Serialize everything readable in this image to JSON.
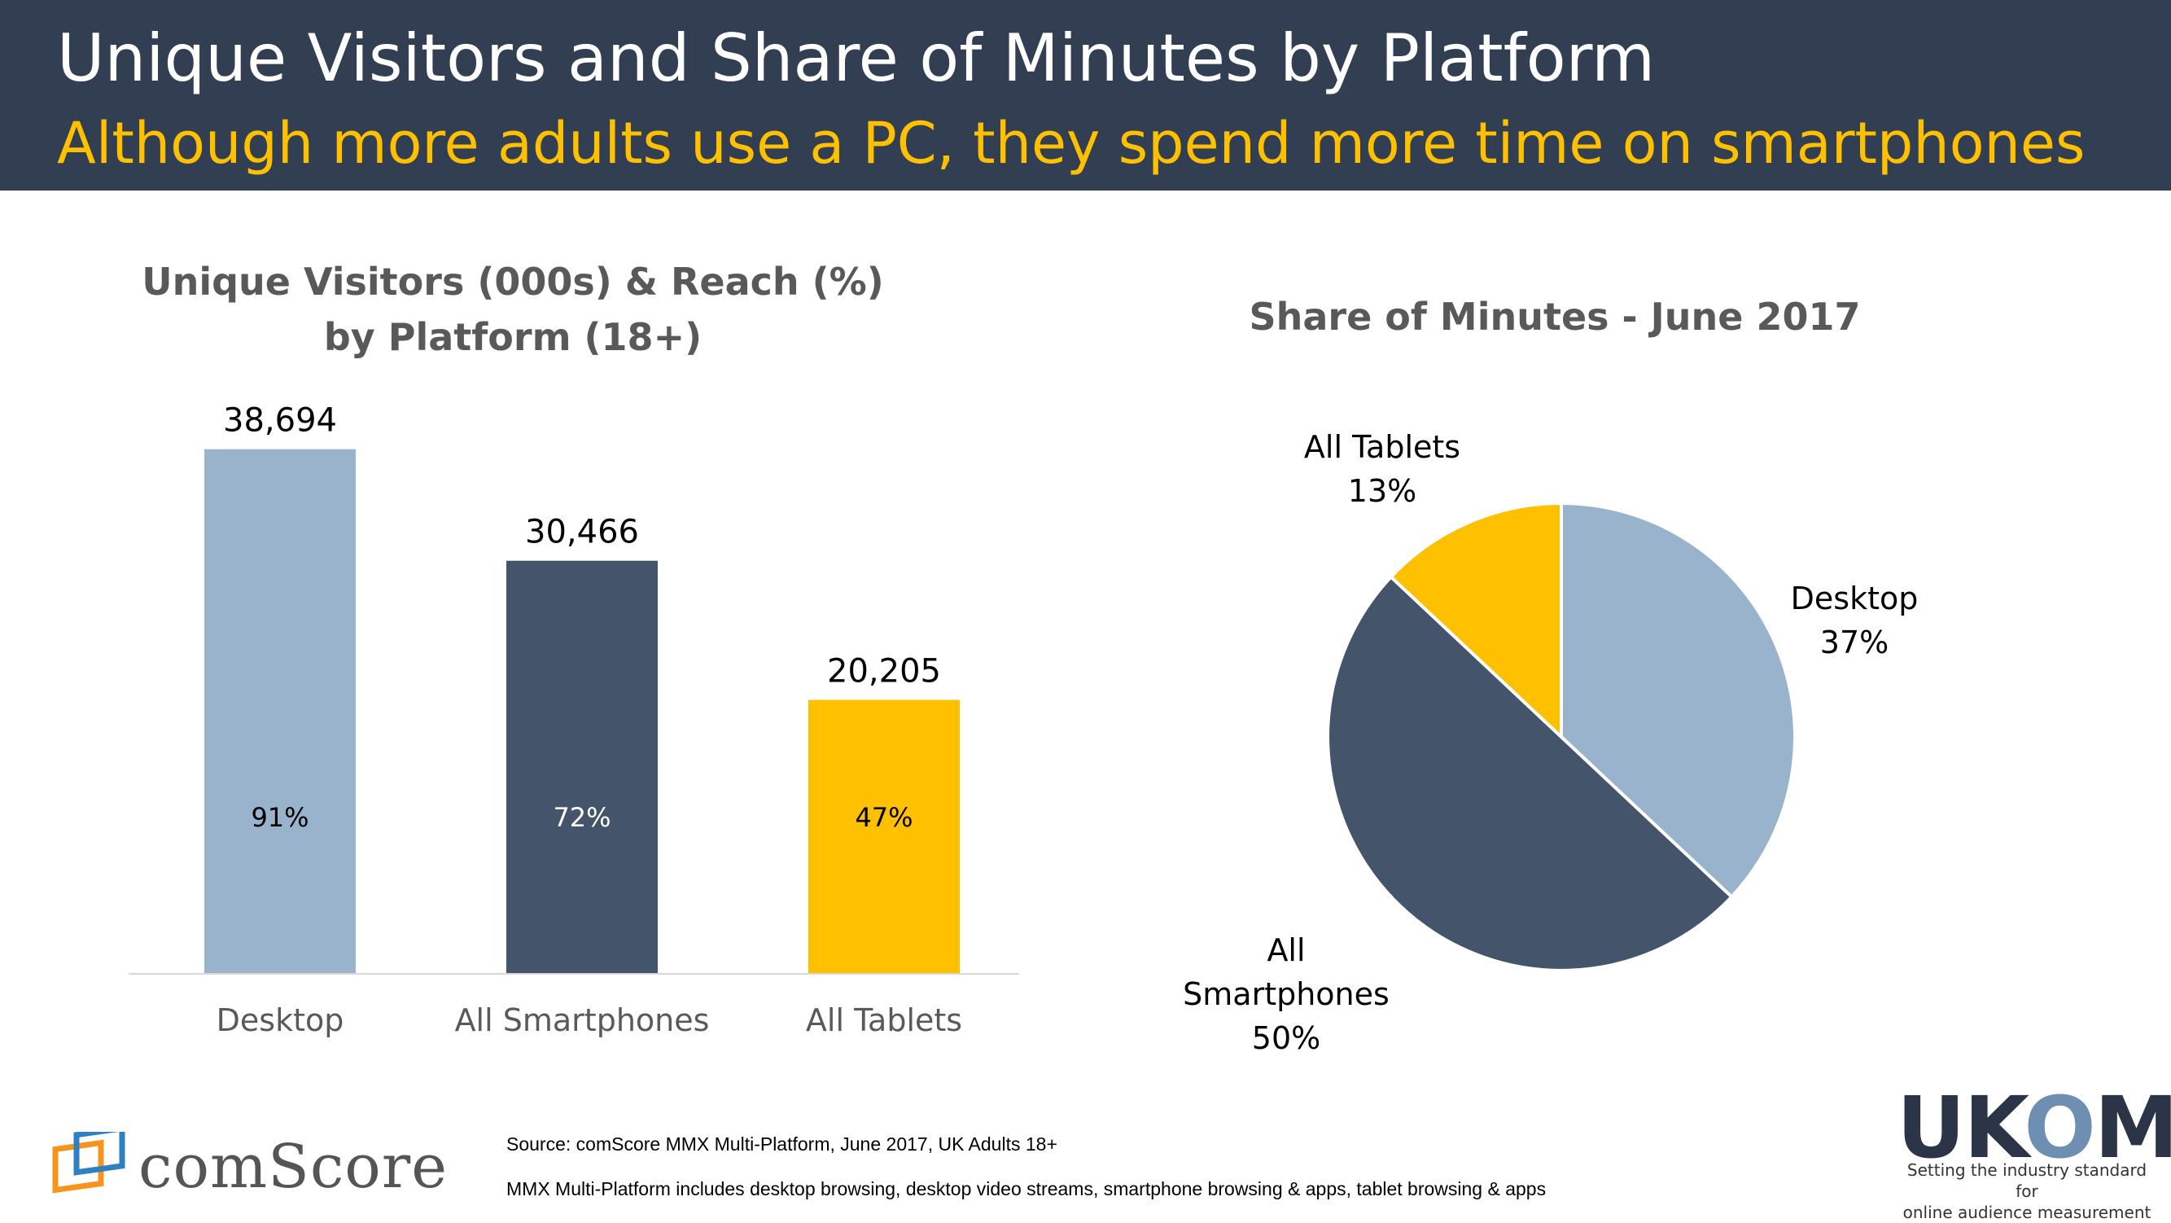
{
  "header": {
    "title": "Unique Visitors and Share of Minutes by Platform",
    "subtitle": "Although more adults use a PC, they spend more time on smartphones"
  },
  "chart_data": [
    {
      "type": "bar",
      "title_line1": "Unique Visitors (000s) & Reach (%)",
      "title_line2": "by Platform (18+)",
      "categories": [
        "Desktop",
        "All Smartphones",
        "All Tablets"
      ],
      "values": [
        38694,
        30466,
        20205
      ],
      "value_labels": [
        "38,694",
        "30,466",
        "20,205"
      ],
      "reach_labels": [
        "91%",
        "72%",
        "47%"
      ],
      "reach": [
        91,
        72,
        47
      ],
      "colors": [
        "#98b3cb",
        "#44546a",
        "#ffc000"
      ],
      "ylim": [
        0,
        46000
      ],
      "grid": false
    },
    {
      "type": "pie",
      "title": "Share of Minutes - June 2017",
      "slices": [
        {
          "name": "Desktop",
          "value": 37,
          "label": "37%",
          "color": "#98b3cb"
        },
        {
          "name": "All Smartphones",
          "value": 50,
          "label": "50%",
          "color": "#44546a"
        },
        {
          "name": "All Tablets",
          "value": 13,
          "label": "13%",
          "color": "#ffc000"
        }
      ]
    }
  ],
  "footer": {
    "source": "Source: comScore MMX Multi-Platform, June 2017, UK Adults 18+",
    "note": "MMX Multi-Platform includes desktop browsing, desktop video streams, smartphone browsing & apps, tablet browsing & apps",
    "comscore_logo_text": "comScore",
    "ukom_logo_text_u": "UK",
    "ukom_logo_text_o": "O",
    "ukom_logo_text_m": "M",
    "ukom_tagline_1": "Setting the industry standard for",
    "ukom_tagline_2": "online audience measurement"
  }
}
